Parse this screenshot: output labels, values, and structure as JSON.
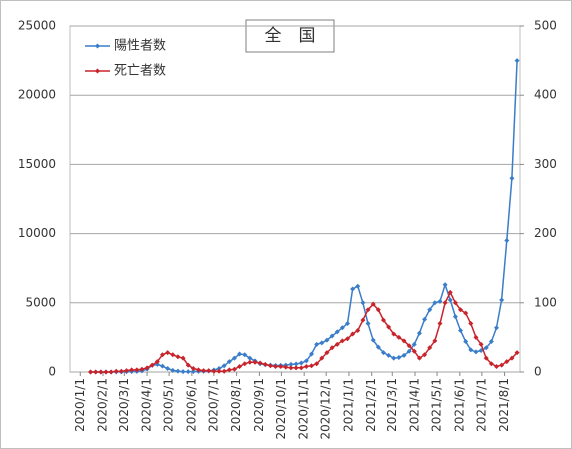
{
  "chart_data": {
    "type": "line",
    "title": "全　国",
    "x": [
      "2020/1/15",
      "2020/1/22",
      "2020/1/29",
      "2020/2/5",
      "2020/2/12",
      "2020/2/19",
      "2020/2/26",
      "2020/3/4",
      "2020/3/11",
      "2020/3/18",
      "2020/3/25",
      "2020/4/1",
      "2020/4/8",
      "2020/4/15",
      "2020/4/22",
      "2020/4/29",
      "2020/5/6",
      "2020/5/13",
      "2020/5/20",
      "2020/5/27",
      "2020/6/3",
      "2020/6/10",
      "2020/6/17",
      "2020/6/24",
      "2020/7/1",
      "2020/7/8",
      "2020/7/15",
      "2020/7/22",
      "2020/7/29",
      "2020/8/5",
      "2020/8/12",
      "2020/8/19",
      "2020/8/26",
      "2020/9/2",
      "2020/9/9",
      "2020/9/16",
      "2020/9/23",
      "2020/9/30",
      "2020/10/7",
      "2020/10/14",
      "2020/10/21",
      "2020/10/28",
      "2020/11/4",
      "2020/11/11",
      "2020/11/18",
      "2020/11/25",
      "2020/12/2",
      "2020/12/9",
      "2020/12/16",
      "2020/12/23",
      "2020/12/30",
      "2021/1/6",
      "2021/1/13",
      "2021/1/20",
      "2021/1/27",
      "2021/2/3",
      "2021/2/10",
      "2021/2/17",
      "2021/2/24",
      "2021/3/3",
      "2021/3/10",
      "2021/3/17",
      "2021/3/24",
      "2021/3/31",
      "2021/4/7",
      "2021/4/14",
      "2021/4/21",
      "2021/4/28",
      "2021/5/5",
      "2021/5/12",
      "2021/5/19",
      "2021/5/26",
      "2021/6/2",
      "2021/6/9",
      "2021/6/16",
      "2021/6/23",
      "2021/6/30",
      "2021/7/7",
      "2021/7/14",
      "2021/7/21",
      "2021/7/28",
      "2021/8/4",
      "2021/8/11",
      "2021/8/18"
    ],
    "series": [
      {
        "name": "陽性者数",
        "color": "#3a7dc9",
        "axis": "y",
        "values": [
          0,
          1,
          2,
          2,
          3,
          5,
          10,
          25,
          40,
          45,
          80,
          220,
          480,
          550,
          420,
          250,
          120,
          60,
          30,
          25,
          35,
          45,
          50,
          70,
          140,
          250,
          450,
          750,
          1000,
          1300,
          1250,
          1000,
          800,
          600,
          520,
          500,
          470,
          480,
          500,
          550,
          580,
          650,
          800,
          1300,
          2000,
          2100,
          2300,
          2600,
          2900,
          3200,
          3500,
          6000,
          6200,
          5000,
          3500,
          2300,
          1800,
          1400,
          1200,
          1000,
          1050,
          1200,
          1500,
          2000,
          2800,
          3800,
          4500,
          5000,
          5100,
          6300,
          5200,
          4000,
          3000,
          2200,
          1600,
          1450,
          1550,
          1750,
          2200,
          3200,
          5200,
          9500,
          14000,
          22500
        ]
      },
      {
        "name": "死亡者数",
        "color": "#c8242b",
        "axis": "y2",
        "values": [
          0,
          0,
          0,
          0,
          0,
          1,
          1,
          2,
          3,
          3,
          4,
          6,
          10,
          15,
          25,
          28,
          25,
          22,
          20,
          10,
          5,
          3,
          2,
          2,
          1,
          1,
          1,
          3,
          4,
          8,
          12,
          14,
          14,
          13,
          11,
          9,
          8,
          8,
          7,
          6,
          6,
          6,
          8,
          9,
          12,
          20,
          28,
          35,
          40,
          45,
          48,
          55,
          60,
          75,
          90,
          98,
          90,
          75,
          65,
          55,
          50,
          45,
          38,
          30,
          20,
          25,
          35,
          45,
          70,
          100,
          115,
          100,
          90,
          85,
          70,
          50,
          40,
          20,
          12,
          8,
          10,
          15,
          20,
          28
        ]
      }
    ],
    "xlim": [
      "2019/12/18",
      "2021/8/22"
    ],
    "xticks": [
      "2020/1/1",
      "2020/2/1",
      "2020/3/1",
      "2020/4/1",
      "2020/5/1",
      "2020/6/1",
      "2020/7/1",
      "2020/8/1",
      "2020/9/1",
      "2020/10/1",
      "2020/11/1",
      "2020/12/1",
      "2021/1/1",
      "2021/2/1",
      "2021/3/1",
      "2021/4/1",
      "2021/5/1",
      "2021/6/1",
      "2021/7/1",
      "2021/8/1"
    ],
    "ylim": [
      0,
      25000
    ],
    "yticks": [
      0,
      5000,
      10000,
      15000,
      20000,
      25000
    ],
    "y2lim": [
      0,
      500
    ],
    "y2ticks": [
      0,
      100,
      200,
      300,
      400,
      500
    ],
    "grid": true
  }
}
